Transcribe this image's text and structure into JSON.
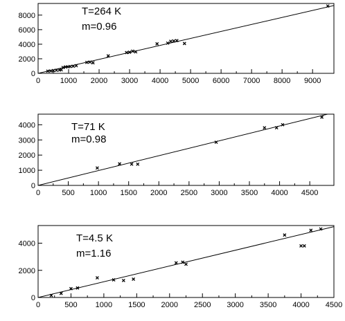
{
  "chart_data": [
    {
      "type": "scatter",
      "annotations": [
        "T=264 K",
        "m=0.96"
      ],
      "xlim": [
        0,
        9700
      ],
      "ylim": [
        0,
        9600
      ],
      "xticks": [
        0,
        1000,
        2000,
        3000,
        4000,
        5000,
        6000,
        7000,
        8000,
        9000
      ],
      "xtick_labels": [
        "0",
        "1000",
        "2000",
        "3000",
        "4000",
        "5000",
        "6000",
        "7000",
        "8000",
        "9000"
      ],
      "yticks": [
        0,
        2000,
        4000,
        6000,
        8000
      ],
      "ytick_labels": [
        "0",
        "2000",
        "4000",
        "6000",
        "8000"
      ],
      "line": {
        "x": [
          0,
          9700
        ],
        "y": [
          0,
          9312
        ]
      },
      "points": [
        [
          320,
          300
        ],
        [
          420,
          330
        ],
        [
          500,
          380
        ],
        [
          600,
          420
        ],
        [
          700,
          460
        ],
        [
          760,
          480
        ],
        [
          820,
          800
        ],
        [
          900,
          880
        ],
        [
          980,
          900
        ],
        [
          1050,
          940
        ],
        [
          1150,
          980
        ],
        [
          1250,
          1050
        ],
        [
          1600,
          1500
        ],
        [
          1700,
          1550
        ],
        [
          1800,
          1450
        ],
        [
          2300,
          2400
        ],
        [
          2900,
          2850
        ],
        [
          3000,
          2900
        ],
        [
          3100,
          3050
        ],
        [
          3200,
          2950
        ],
        [
          3900,
          4050
        ],
        [
          4250,
          4150
        ],
        [
          4350,
          4400
        ],
        [
          4450,
          4450
        ],
        [
          4550,
          4500
        ],
        [
          4800,
          4100
        ],
        [
          9500,
          9250
        ]
      ],
      "grid": false
    },
    {
      "type": "scatter",
      "annotations": [
        "T=71 K",
        "m=0.98"
      ],
      "xlim": [
        0,
        4900
      ],
      "ylim": [
        0,
        4700
      ],
      "xticks": [
        0,
        500,
        1000,
        1500,
        2000,
        2500,
        3000,
        3500,
        4000,
        4500
      ],
      "xtick_labels": [
        "0",
        "500",
        "1000",
        "1500",
        "2000",
        "2500",
        "3000",
        "3500",
        "4000",
        "4500"
      ],
      "yticks": [
        0,
        1000,
        2000,
        3000,
        4000
      ],
      "ytick_labels": [
        "0",
        "1000",
        "2000",
        "3000",
        "4000"
      ],
      "line": {
        "x": [
          0,
          4900
        ],
        "y": [
          0,
          4802
        ]
      },
      "points": [
        [
          980,
          1150
        ],
        [
          1350,
          1420
        ],
        [
          1550,
          1400
        ],
        [
          1650,
          1400
        ],
        [
          2950,
          2850
        ],
        [
          3750,
          3800
        ],
        [
          3950,
          3800
        ],
        [
          4050,
          4000
        ],
        [
          4700,
          4500
        ]
      ],
      "grid": false
    },
    {
      "type": "scatter",
      "annotations": [
        "T=4.5 K",
        "m=1.16"
      ],
      "xlim": [
        0,
        4500
      ],
      "ylim": [
        0,
        5300
      ],
      "xticks": [
        0,
        500,
        1000,
        1500,
        2000,
        2500,
        3000,
        3500,
        4000,
        4500
      ],
      "xtick_labels": [
        "0",
        "500",
        "1000",
        "1500",
        "2000",
        "2500",
        "3000",
        "3500",
        "4000",
        "4500"
      ],
      "yticks": [
        0,
        2000,
        4000
      ],
      "ytick_labels": [
        "0",
        "2000",
        "4000"
      ],
      "line": {
        "x": [
          0,
          4500
        ],
        "y": [
          0,
          5220
        ]
      },
      "points": [
        [
          200,
          150
        ],
        [
          350,
          300
        ],
        [
          500,
          650
        ],
        [
          600,
          700
        ],
        [
          900,
          1450
        ],
        [
          1150,
          1300
        ],
        [
          1300,
          1250
        ],
        [
          1450,
          1350
        ],
        [
          2100,
          2550
        ],
        [
          2200,
          2600
        ],
        [
          2250,
          2450
        ],
        [
          3750,
          4600
        ],
        [
          4000,
          3800
        ],
        [
          4050,
          3800
        ],
        [
          4150,
          4950
        ],
        [
          4300,
          5050
        ]
      ],
      "grid": false
    }
  ]
}
